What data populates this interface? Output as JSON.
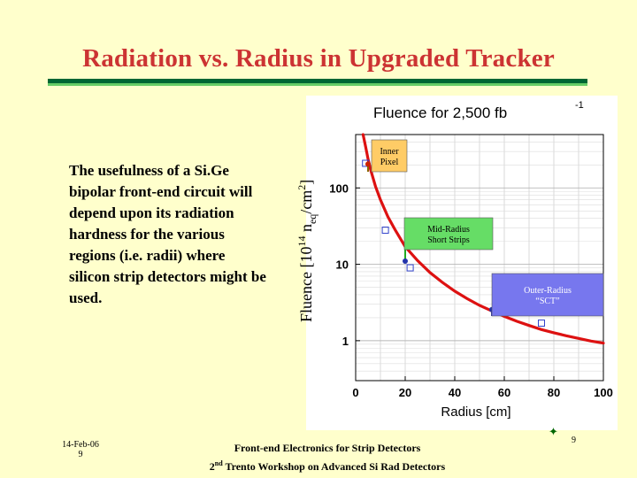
{
  "slide": {
    "title": "Radiation vs. Radius in Upgraded Tracker",
    "body_lines": [
      "The usefulness of a Si.Ge",
      "bipolar front-end circuit will",
      "depend upon its radiation",
      "hardness for the various",
      "regions (i.e. radii) where",
      "silicon strip detectors might be",
      "used."
    ]
  },
  "footer": {
    "date": "14-Feb-06",
    "page_left": "9",
    "line1": "Front-end Electronics for Strip Detectors",
    "line2_prefix": "2",
    "line2_sup": "nd",
    "line2_rest": " Trento Workshop on Advanced Si Rad Detectors",
    "page_right": "9"
  },
  "colors": {
    "background": "#ffffcc",
    "title": "#cc3333",
    "title_rule": "#006633",
    "curve": "#dd1111",
    "callout_fill": "#ffcc66",
    "callout_mid_fill": "#66dd66",
    "callout_outer_fill": "#7777ee",
    "data_point": "#3344cc"
  },
  "chart_data": {
    "type": "line",
    "title": "Fluence for 2,500 fb",
    "title_sup": "-1",
    "xlabel": "Radius [cm]",
    "ylabel_prefix": "Fluence [10",
    "ylabel_sup": "14",
    "ylabel_mid": " n",
    "ylabel_sub": "eq",
    "ylabel_suffix": "/cm",
    "ylabel_sup2": "2",
    "ylabel_end": "]",
    "xlim": [
      0,
      100
    ],
    "ylim": [
      0.3,
      500
    ],
    "yscale": "log",
    "x_ticks": [
      0,
      20,
      40,
      60,
      80,
      100
    ],
    "x_tick_labels": [
      "0",
      "20",
      "40",
      "60",
      "80",
      "100"
    ],
    "y_ticks": [
      1,
      10,
      100
    ],
    "y_tick_labels": [
      "1",
      "10",
      "100"
    ],
    "grid": true,
    "series": [
      {
        "x": [
          3,
          4,
          5,
          6,
          8,
          10,
          13,
          16,
          20,
          25,
          30,
          35,
          40,
          45,
          50,
          55,
          60,
          65,
          70,
          75,
          80,
          85,
          90,
          95,
          100
        ],
        "y": [
          570,
          350,
          240,
          175,
          105,
          70,
          42,
          28,
          17,
          11.2,
          7.8,
          5.8,
          4.45,
          3.55,
          2.9,
          2.45,
          2.08,
          1.8,
          1.58,
          1.4,
          1.27,
          1.16,
          1.07,
          0.99,
          0.93
        ]
      }
    ],
    "markers": [
      {
        "x": 4,
        "y": 210
      },
      {
        "x": 12,
        "y": 28
      },
      {
        "x": 22,
        "y": 9
      },
      {
        "x": 75,
        "y": 1.7
      }
    ],
    "callouts": [
      {
        "label_lines": [
          "Inner",
          "Pixel"
        ],
        "x": 5,
        "y": 205
      },
      {
        "label_lines": [
          "Mid-Radius",
          "Short Strips"
        ],
        "x": 20,
        "y": 11
      },
      {
        "label_lines": [
          "Outer-Radius",
          "“SCT”"
        ],
        "x": 55,
        "y": 2.55
      }
    ]
  }
}
